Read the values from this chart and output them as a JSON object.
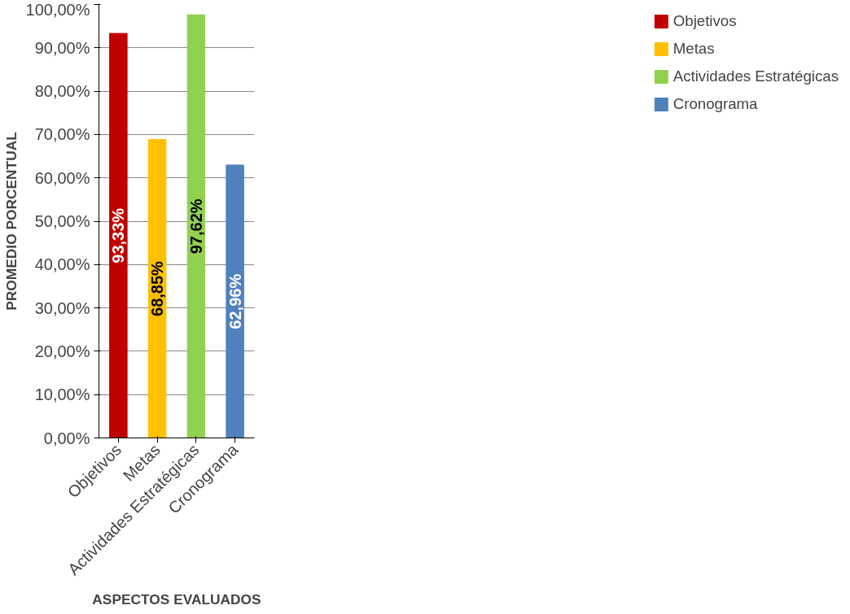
{
  "chart_data": {
    "type": "bar",
    "xlabel": "ASPECTOS EVALUADOS",
    "ylabel": "PROMEDIO PORCENTUAL",
    "categories": [
      "Objetivos",
      "Metas",
      "Actividades Estratégicas",
      "Cronograma"
    ],
    "series": [
      {
        "name": "Objetivos",
        "color": "#c00000",
        "values": [
          93.33,
          null,
          null,
          null
        ]
      },
      {
        "name": "Metas",
        "color": "#ffc000",
        "values": [
          null,
          68.85,
          null,
          null
        ]
      },
      {
        "name": "Actividades Estratégicas",
        "color": "#92d050",
        "values": [
          null,
          null,
          97.62,
          null
        ]
      },
      {
        "name": "Cronograma",
        "color": "#4f81bd",
        "values": [
          null,
          null,
          null,
          62.96
        ]
      }
    ],
    "stacked": true,
    "value_labels": [
      "93,33%",
      "68,85%",
      "97,62%",
      "62,96%"
    ],
    "ylim": [
      0,
      100
    ],
    "yticks": [
      {
        "value": 0,
        "label": "0,00%"
      },
      {
        "value": 10,
        "label": "10,00%"
      },
      {
        "value": 20,
        "label": "20,00%"
      },
      {
        "value": 30,
        "label": "30,00%"
      },
      {
        "value": 40,
        "label": "40,00%"
      },
      {
        "value": 50,
        "label": "50,00%"
      },
      {
        "value": 60,
        "label": "60,00%"
      },
      {
        "value": 70,
        "label": "70,00%"
      },
      {
        "value": 80,
        "label": "80,00%"
      },
      {
        "value": 90,
        "label": "90,00%"
      },
      {
        "value": 100,
        "label": "100,00%"
      }
    ],
    "grid": "y",
    "legend": "right"
  }
}
